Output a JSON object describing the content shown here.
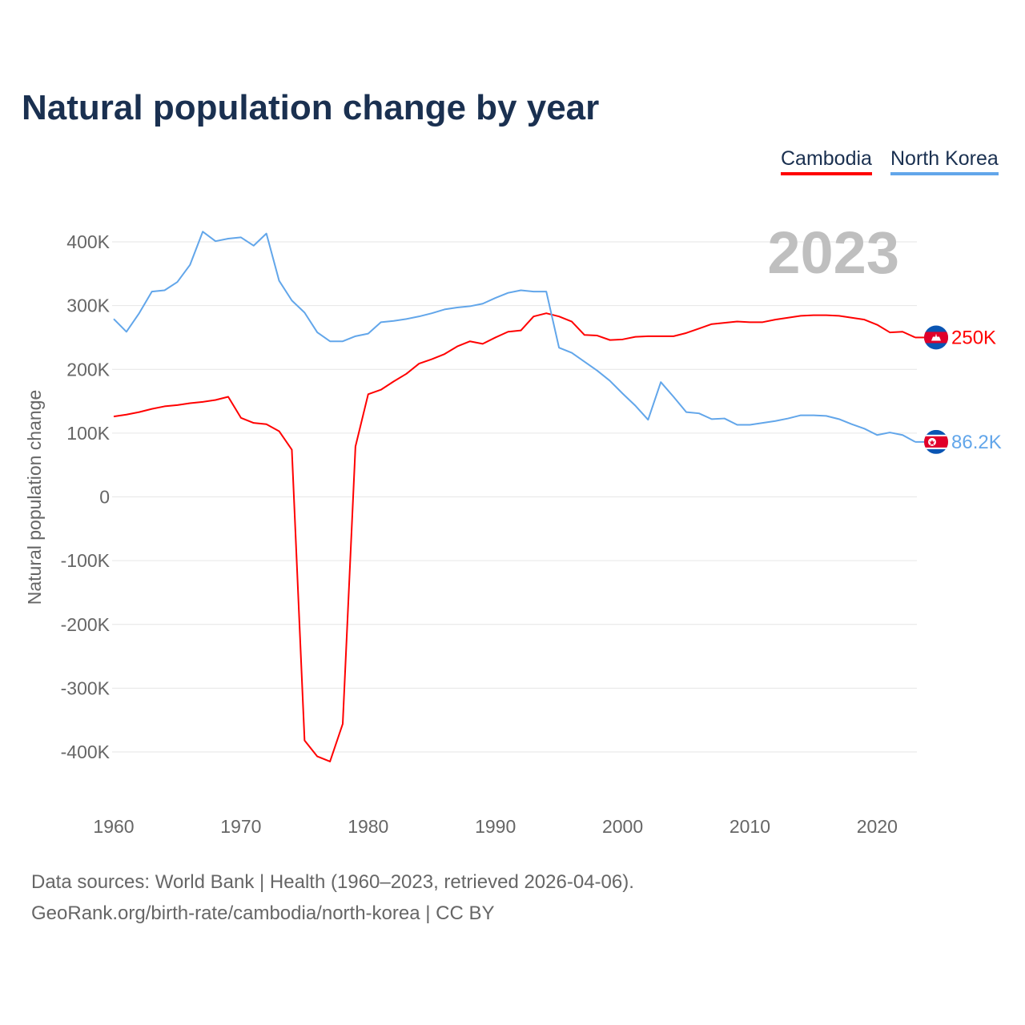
{
  "title": "Natural population change by year",
  "legend": {
    "cambodia": "Cambodia",
    "north_korea": "North Korea"
  },
  "year_label": "2023",
  "footer": {
    "line1": "Data sources: World Bank | Health (1960–2023, retrieved 2026-04-06).",
    "line2": "GeoRank.org/birth-rate/cambodia/north-korea | CC BY"
  },
  "chart_data": {
    "type": "line",
    "title": "Natural population change by year",
    "xlabel": "",
    "ylabel": "Natural population change",
    "xlim": [
      1960,
      2023
    ],
    "ylim": [
      -400000,
      400000
    ],
    "x_ticks": [
      1960,
      1970,
      1980,
      1990,
      2000,
      2010,
      2020
    ],
    "y_ticks": [
      {
        "v": 400000,
        "label": "400K"
      },
      {
        "v": 300000,
        "label": "300K"
      },
      {
        "v": 200000,
        "label": "200K"
      },
      {
        "v": 100000,
        "label": "100K"
      },
      {
        "v": 0,
        "label": "0"
      },
      {
        "v": -100000,
        "label": "-100K"
      },
      {
        "v": -200000,
        "label": "-200K"
      },
      {
        "v": -300000,
        "label": "-300K"
      },
      {
        "v": -400000,
        "label": "-400K"
      }
    ],
    "grid": true,
    "legend_position": "top-right",
    "x_start": 1960,
    "series": [
      {
        "name": "Cambodia",
        "color": "#ff0000",
        "end_label": "250K",
        "values": [
          126000,
          129000,
          133000,
          138000,
          142000,
          144000,
          147000,
          149000,
          152000,
          157000,
          124000,
          116000,
          114000,
          103000,
          74000,
          -382000,
          -407000,
          -415000,
          -356000,
          79000,
          161000,
          168000,
          181000,
          193000,
          209000,
          216000,
          224000,
          236000,
          244000,
          240000,
          250000,
          259000,
          261000,
          283000,
          288000,
          283000,
          275000,
          254000,
          253000,
          246000,
          247000,
          251000,
          252000,
          252000,
          252000,
          257000,
          264000,
          271000,
          273000,
          275000,
          274000,
          274000,
          278000,
          281000,
          284000,
          285000,
          285000,
          284000,
          281000,
          278000,
          270000,
          258000,
          259000,
          250000
        ]
      },
      {
        "name": "North Korea",
        "color": "#62a6ea",
        "end_label": "86.2K",
        "values": [
          279000,
          259000,
          288000,
          322000,
          324000,
          337000,
          364000,
          416000,
          401000,
          405000,
          407000,
          394000,
          413000,
          339000,
          308000,
          289000,
          258000,
          244000,
          244000,
          252000,
          256000,
          274000,
          276000,
          279000,
          283000,
          288000,
          294000,
          297000,
          299000,
          303000,
          312000,
          320000,
          324000,
          322000,
          322000,
          234000,
          226000,
          212000,
          198000,
          182000,
          162000,
          143000,
          121000,
          180000,
          157000,
          133000,
          131000,
          122000,
          123000,
          113000,
          113000,
          116000,
          119000,
          123000,
          128000,
          128000,
          127000,
          122000,
          114000,
          107000,
          97000,
          101000,
          97000,
          86200
        ]
      }
    ]
  }
}
